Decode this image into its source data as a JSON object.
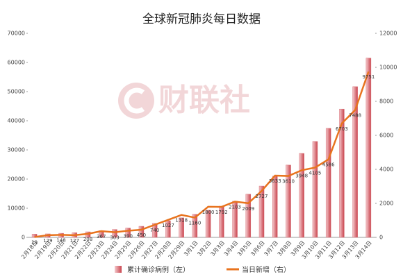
{
  "chart_data": {
    "type": "bar_line",
    "title": "全球新冠肺炎每日数据",
    "watermark": "财联社",
    "categories": [
      "2月18日",
      "2月19日",
      "2月20日",
      "2月21日",
      "2月22日",
      "2月23日",
      "2月24日",
      "2月25日",
      "2月26日",
      "2月27日",
      "2月28日",
      "2月29日",
      "3月1日",
      "3月2日",
      "3月3日",
      "3月4日",
      "3月5日",
      "3月6日",
      "3月7日",
      "3月8日",
      "3月9日",
      "3月10日",
      "3月11日",
      "3月12日",
      "3月13日",
      "3月14日"
    ],
    "series": [
      {
        "name": "累计确诊病例（左）",
        "type": "bar",
        "color": "#d9737a",
        "values": [
          1100,
          1200,
          1400,
          1600,
          1900,
          2300,
          2700,
          3200,
          3800,
          4800,
          5700,
          6700,
          7900,
          9300,
          10700,
          12400,
          14800,
          17600,
          21000,
          24800,
          28800,
          32900,
          37400,
          44000,
          51700,
          61500
        ]
      },
      {
        "name": "当日新增（右）",
        "type": "line",
        "axis": "y2",
        "color": "#e8731e",
        "values": [
          19,
          129,
          148,
          127,
          208,
          367,
          303,
          390,
          450,
          740,
          1027,
          1318,
          1160,
          1800,
          1792,
          2103,
          2009,
          2727,
          3633,
          3610,
          3948,
          4105,
          4586,
          6703,
          7488,
          9751
        ]
      }
    ],
    "ylim": [
      0,
      70000
    ],
    "yticks": [
      0,
      10000,
      20000,
      30000,
      40000,
      50000,
      60000,
      70000
    ],
    "y2lim": [
      0,
      12000
    ],
    "y2ticks": [
      0,
      2000,
      4000,
      6000,
      8000,
      10000,
      12000
    ],
    "legend": "bottom"
  }
}
